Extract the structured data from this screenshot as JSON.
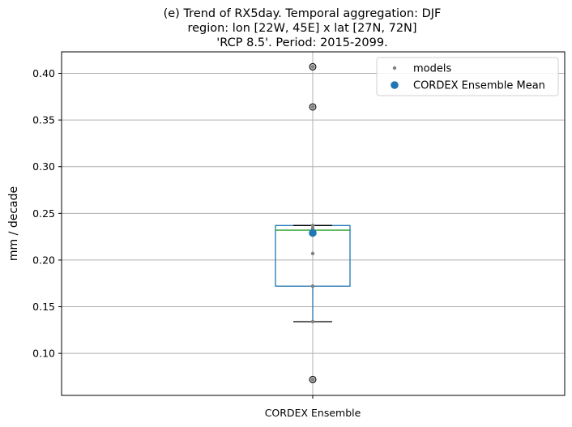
{
  "chart_data": {
    "type": "box",
    "title_lines": [
      "(e) Trend of RX5day. Temporal aggregation: DJF",
      "region: lon [22W, 45E] x lat [27N, 72N]",
      "'RCP 8.5'. Period: 2015-2099."
    ],
    "ylabel": "mm / decade",
    "xlabel": "",
    "categories": [
      "CORDEX Ensemble"
    ],
    "ylim": [
      0.055,
      0.423
    ],
    "yticks": [
      0.1,
      0.15,
      0.2,
      0.25,
      0.3,
      0.35,
      0.4
    ],
    "ytick_labels": [
      "0.10",
      "0.15",
      "0.20",
      "0.25",
      "0.30",
      "0.35",
      "0.40"
    ],
    "grid": true,
    "box": {
      "q1": 0.172,
      "median": 0.232,
      "q3": 0.237,
      "whisker_low": 0.134,
      "whisker_high": 0.237,
      "fliers": [
        0.407,
        0.364,
        0.072
      ]
    },
    "model_values": [
      0.407,
      0.364,
      0.237,
      0.234,
      0.232,
      0.207,
      0.172,
      0.134,
      0.072
    ],
    "ensemble_mean": 0.229,
    "legend": {
      "position": "upper right",
      "entries": [
        {
          "label": "models",
          "marker": "small-dot"
        },
        {
          "label": "CORDEX Ensemble Mean",
          "marker": "large-dot"
        }
      ]
    },
    "colors": {
      "box": "#1f77b4",
      "median": "#2ca02c",
      "models": "#7f7f7f",
      "mean": "#1f77b4",
      "grid": "#b0b0b0",
      "whisker_cap": "#000000",
      "flier_fill": "#bfbfbf"
    }
  }
}
